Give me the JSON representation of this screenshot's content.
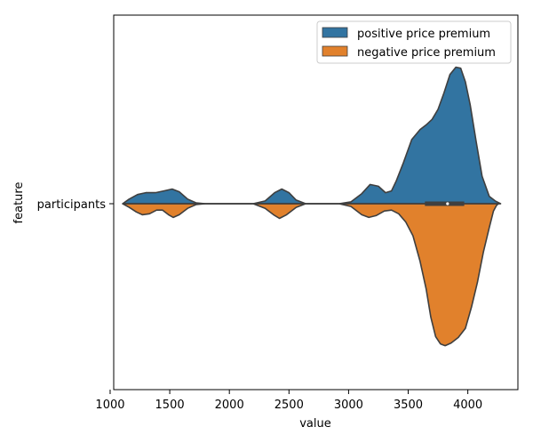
{
  "chart_data": {
    "type": "violin",
    "orientation": "horizontal",
    "split": true,
    "xlabel": "value",
    "ylabel": "feature",
    "categories": [
      "participants"
    ],
    "xlim": [
      1030,
      4420
    ],
    "xticks": [
      1000,
      1500,
      2000,
      2500,
      3000,
      3500,
      4000
    ],
    "grid": false,
    "legend": {
      "placement": "top-right"
    },
    "series": [
      {
        "name": "positive price premium",
        "color": "#3274a1",
        "side": "upper",
        "density": [
          [
            1105,
            0.0
          ],
          [
            1160,
            0.05
          ],
          [
            1230,
            0.1
          ],
          [
            1300,
            0.12
          ],
          [
            1380,
            0.12
          ],
          [
            1450,
            0.14
          ],
          [
            1520,
            0.16
          ],
          [
            1580,
            0.13
          ],
          [
            1650,
            0.05
          ],
          [
            1720,
            0.01
          ],
          [
            1800,
            0.0
          ],
          [
            2200,
            0.0
          ],
          [
            2300,
            0.03
          ],
          [
            2380,
            0.12
          ],
          [
            2440,
            0.16
          ],
          [
            2500,
            0.12
          ],
          [
            2560,
            0.04
          ],
          [
            2640,
            0.0
          ],
          [
            2920,
            0.0
          ],
          [
            3020,
            0.02
          ],
          [
            3110,
            0.11
          ],
          [
            3180,
            0.21
          ],
          [
            3250,
            0.19
          ],
          [
            3310,
            0.12
          ],
          [
            3360,
            0.14
          ],
          [
            3400,
            0.25
          ],
          [
            3460,
            0.45
          ],
          [
            3530,
            0.7
          ],
          [
            3600,
            0.81
          ],
          [
            3650,
            0.86
          ],
          [
            3700,
            0.92
          ],
          [
            3750,
            1.03
          ],
          [
            3800,
            1.21
          ],
          [
            3850,
            1.41
          ],
          [
            3900,
            1.49
          ],
          [
            3940,
            1.48
          ],
          [
            3980,
            1.33
          ],
          [
            4020,
            1.08
          ],
          [
            4070,
            0.68
          ],
          [
            4120,
            0.3
          ],
          [
            4180,
            0.08
          ],
          [
            4230,
            0.03
          ],
          [
            4275,
            0.0
          ]
        ]
      },
      {
        "name": "negative price premium",
        "color": "#e1812c",
        "side": "lower",
        "density": [
          [
            1105,
            0.0
          ],
          [
            1160,
            0.04
          ],
          [
            1220,
            0.09
          ],
          [
            1270,
            0.12
          ],
          [
            1330,
            0.11
          ],
          [
            1390,
            0.07
          ],
          [
            1440,
            0.07
          ],
          [
            1490,
            0.12
          ],
          [
            1530,
            0.15
          ],
          [
            1580,
            0.12
          ],
          [
            1650,
            0.05
          ],
          [
            1720,
            0.01
          ],
          [
            1800,
            0.0
          ],
          [
            2200,
            0.0
          ],
          [
            2300,
            0.05
          ],
          [
            2370,
            0.12
          ],
          [
            2420,
            0.16
          ],
          [
            2480,
            0.12
          ],
          [
            2560,
            0.04
          ],
          [
            2640,
            0.0
          ],
          [
            2920,
            0.0
          ],
          [
            3020,
            0.03
          ],
          [
            3110,
            0.12
          ],
          [
            3170,
            0.15
          ],
          [
            3230,
            0.13
          ],
          [
            3300,
            0.08
          ],
          [
            3360,
            0.07
          ],
          [
            3420,
            0.11
          ],
          [
            3480,
            0.2
          ],
          [
            3540,
            0.35
          ],
          [
            3600,
            0.63
          ],
          [
            3650,
            0.93
          ],
          [
            3690,
            1.24
          ],
          [
            3730,
            1.45
          ],
          [
            3770,
            1.53
          ],
          [
            3810,
            1.55
          ],
          [
            3860,
            1.52
          ],
          [
            3920,
            1.46
          ],
          [
            3980,
            1.36
          ],
          [
            4030,
            1.13
          ],
          [
            4080,
            0.86
          ],
          [
            4130,
            0.53
          ],
          [
            4180,
            0.26
          ],
          [
            4215,
            0.08
          ],
          [
            4240,
            0.02
          ],
          [
            4255,
            0.0
          ]
        ]
      }
    ],
    "boxplot": {
      "q1": 3640,
      "median": 3830,
      "q3": 3970,
      "whisker_low": 1105,
      "whisker_high": 4275
    }
  }
}
